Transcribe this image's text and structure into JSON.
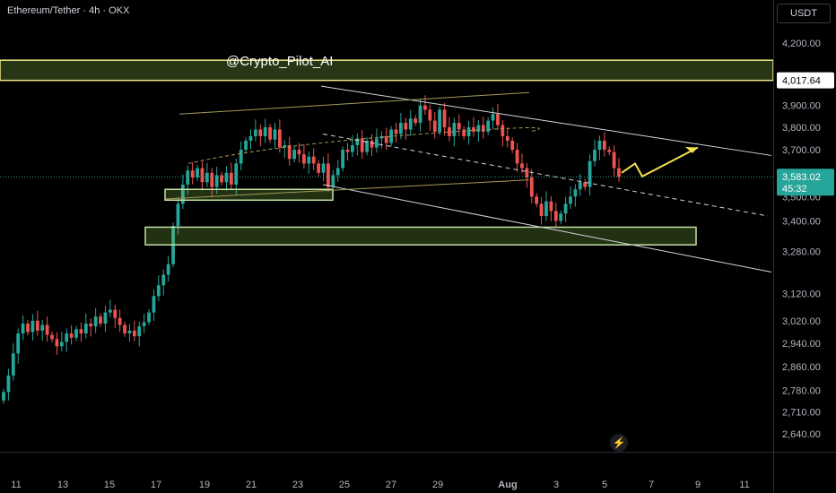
{
  "header": {
    "symbol_label": "Ethereum/Tether · 4h · OKX"
  },
  "currency": "USDT",
  "watermark": "@Crypto_Pilot_AI",
  "badges": {
    "resistance_level": "4,017.64",
    "last_price": "3,583.02",
    "countdown": "45:32"
  },
  "colors": {
    "up": "#26a69a",
    "down": "#ef5350",
    "zone": "#c5e1a5",
    "arrow": "#f5e04f",
    "axis_text": "#b2b5be",
    "price_badge": "#26a69a"
  },
  "chart_data": {
    "type": "candlestick",
    "title": "Ethereum/Tether · 4h · OKX",
    "xlabel": "",
    "ylabel": "",
    "y_scale": "log",
    "ylim": [
      2585,
      4420
    ],
    "y_ticks": [
      "4,200.00",
      "3,900.00",
      "3,800.00",
      "3,700.00",
      "3,500.00",
      "3,400.00",
      "3,280.00",
      "3,120.00",
      "3,020.00",
      "2,940.00",
      "2,860.00",
      "2,780.00",
      "2,710.00",
      "2,640.00"
    ],
    "x_ticks": [
      "11",
      "13",
      "15",
      "17",
      "19",
      "21",
      "23",
      "25",
      "27",
      "29",
      "Aug",
      "3",
      "5",
      "7",
      "9",
      "11"
    ],
    "last_price": 3583.02,
    "resistance_level": 4017.64,
    "closes": [
      2775,
      2830,
      2905,
      2975,
      3010,
      2980,
      3020,
      2985,
      3005,
      2970,
      2955,
      2930,
      2945,
      2975,
      2960,
      2990,
      2975,
      3010,
      3000,
      3035,
      3010,
      3050,
      3060,
      3030,
      3005,
      2975,
      2985,
      2965,
      3000,
      3015,
      3050,
      3110,
      3150,
      3190,
      3230,
      3380,
      3470,
      3550,
      3610,
      3580,
      3620,
      3560,
      3600,
      3540,
      3590,
      3560,
      3600,
      3550,
      3640,
      3700,
      3740,
      3760,
      3790,
      3760,
      3800,
      3745,
      3790,
      3710,
      3720,
      3660,
      3700,
      3680,
      3640,
      3670,
      3640,
      3600,
      3640,
      3540,
      3590,
      3620,
      3700,
      3690,
      3720,
      3750,
      3690,
      3740,
      3710,
      3750,
      3760,
      3730,
      3790,
      3770,
      3820,
      3790,
      3840,
      3820,
      3900,
      3880,
      3830,
      3780,
      3880,
      3800,
      3760,
      3820,
      3790,
      3760,
      3800,
      3780,
      3810,
      3780,
      3830,
      3860,
      3810,
      3760,
      3740,
      3700,
      3640,
      3620,
      3580,
      3500,
      3470,
      3420,
      3480,
      3440,
      3400,
      3430,
      3470,
      3500,
      3530,
      3560,
      3540,
      3650,
      3700,
      3740,
      3700,
      3690,
      3620,
      3583.02
    ]
  }
}
